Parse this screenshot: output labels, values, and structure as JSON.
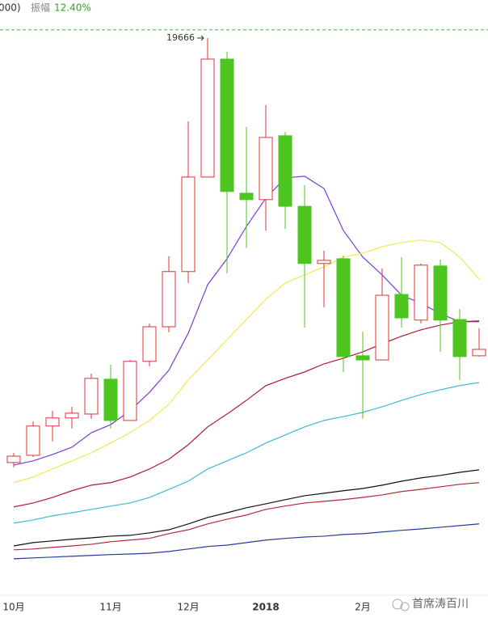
{
  "header": {
    "cut_text": "000)",
    "amplitude_label": "振幅",
    "amplitude_value": "12.40%"
  },
  "watermark": "首席涛百川",
  "chart_data": {
    "type": "candlestick",
    "categories": [
      "10月",
      null,
      null,
      null,
      null,
      "11月",
      null,
      null,
      null,
      "12月",
      null,
      null,
      null,
      "2018",
      null,
      null,
      null,
      null,
      "2月",
      null,
      null,
      null,
      null,
      null,
      null
    ],
    "open": [
      4440,
      4700,
      5750,
      6040,
      6180,
      7430,
      5950,
      8070,
      9310,
      11290,
      14680,
      18910,
      14100,
      13870,
      16160,
      13630,
      11580,
      11750,
      8270,
      8120,
      10470,
      9550,
      11490,
      9570,
      8270
    ],
    "high": [
      4790,
      5920,
      6300,
      6440,
      7630,
      7950,
      8120,
      9430,
      11840,
      16680,
      19666,
      19170,
      16480,
      17260,
      16300,
      14390,
      12040,
      11870,
      9140,
      11400,
      11810,
      11580,
      11720,
      9950,
      9260
    ],
    "low": [
      4270,
      4640,
      5200,
      5660,
      6010,
      5660,
      5950,
      7890,
      9110,
      10880,
      14680,
      11230,
      12130,
      12760,
      12820,
      9280,
      10010,
      7690,
      6010,
      8120,
      9280,
      9430,
      8410,
      7400,
      8240
    ],
    "close": [
      4670,
      5750,
      6040,
      6210,
      7460,
      5950,
      8070,
      9310,
      11290,
      14680,
      18910,
      14160,
      13870,
      16100,
      13630,
      11580,
      11690,
      8240,
      8120,
      10440,
      9630,
      11520,
      9550,
      8240,
      8500
    ],
    "up_color": "#e0303a",
    "down_color": "#4cc61e",
    "lines": [
      {
        "color": "#7b3fd0",
        "values": [
          4350,
          4500,
          4730,
          4990,
          5510,
          5800,
          6300,
          6960,
          7750,
          9080,
          10820,
          11750,
          12910,
          13920,
          14650,
          14710,
          14270,
          12760,
          11810,
          11170,
          10440,
          10150,
          9780,
          9490,
          9490
        ]
      },
      {
        "color": "#f2e94e",
        "values": [
          3720,
          3920,
          4210,
          4500,
          4790,
          5140,
          5510,
          5950,
          6530,
          7400,
          8120,
          8850,
          9570,
          10300,
          10880,
          11170,
          11460,
          11810,
          11950,
          12180,
          12330,
          12420,
          12330,
          11810,
          11020
        ]
      },
      {
        "color": "#b5182e",
        "values": [
          2850,
          2990,
          3190,
          3430,
          3630,
          3720,
          3920,
          4210,
          4560,
          5080,
          5720,
          6180,
          6670,
          7200,
          7460,
          7690,
          7980,
          8180,
          8410,
          8700,
          8970,
          9200,
          9370,
          9490,
          9520
        ]
      },
      {
        "color": "#3fb8d8",
        "values": [
          2270,
          2380,
          2530,
          2640,
          2760,
          2880,
          2990,
          3190,
          3480,
          3770,
          4210,
          4500,
          4790,
          5140,
          5430,
          5720,
          5950,
          6090,
          6240,
          6440,
          6670,
          6880,
          7050,
          7200,
          7310
        ]
      },
      {
        "color": "#111111",
        "values": [
          1450,
          1570,
          1630,
          1690,
          1740,
          1800,
          1830,
          1920,
          2030,
          2240,
          2470,
          2640,
          2820,
          2960,
          3110,
          3250,
          3340,
          3430,
          3510,
          3630,
          3770,
          3890,
          3980,
          4090,
          4180
        ]
      },
      {
        "color": "#b22a3a",
        "values": [
          1310,
          1340,
          1400,
          1450,
          1510,
          1600,
          1660,
          1720,
          1890,
          2030,
          2240,
          2410,
          2560,
          2760,
          2880,
          2990,
          3050,
          3110,
          3190,
          3280,
          3400,
          3480,
          3570,
          3660,
          3720
        ]
      },
      {
        "color": "#2a3a9a",
        "values": [
          990,
          1020,
          1050,
          1080,
          1110,
          1140,
          1160,
          1190,
          1250,
          1340,
          1430,
          1480,
          1570,
          1660,
          1720,
          1770,
          1800,
          1860,
          1890,
          1950,
          2010,
          2060,
          2120,
          2180,
          2240
        ]
      }
    ],
    "ylim": [
      0,
      21000
    ],
    "dashed_level": 19960,
    "dashed_color": "#3cb83c",
    "max_label": 19666
  }
}
